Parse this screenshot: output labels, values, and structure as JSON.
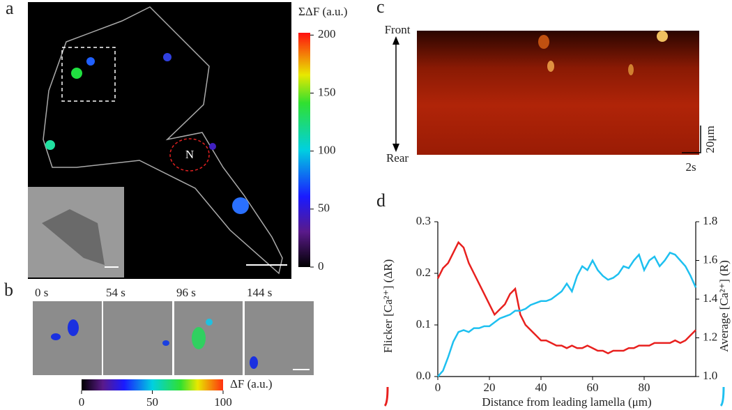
{
  "panel_labels": [
    "a",
    "b",
    "c",
    "d"
  ],
  "panel_a": {
    "colorbar_title": "ΣΔF (a.u.)",
    "colorbar_lim": [
      0,
      202
    ],
    "colorbar_ticks": [
      0,
      50,
      100,
      150,
      200
    ],
    "nucleus_label": "N"
  },
  "panel_b": {
    "times": [
      "0 s",
      "54 s",
      "96 s",
      "144 s"
    ],
    "colorbar_title": "ΔF (a.u.)",
    "colorbar_lim": [
      0,
      100
    ],
    "colorbar_ticks": [
      0,
      50,
      100
    ]
  },
  "panel_c": {
    "front": "Front",
    "rear": "Rear",
    "scale_y": "20μm",
    "scale_x": "2s"
  },
  "chart_data": {
    "type": "line",
    "xlabel": "Distance from leading lamella (μm)",
    "ylabel": "Flicker [Ca²⁺] (ΔR)",
    "y2label": "Average [Ca²⁺] (R)",
    "xlim": [
      0,
      100
    ],
    "xticks": [
      0,
      20,
      40,
      60,
      80
    ],
    "ylim": [
      0,
      0.3
    ],
    "yticks": [
      {
        "value": 0,
        "label": "0.0"
      },
      0.1,
      0.2,
      0.3
    ],
    "y2lim": [
      1,
      1.8
    ],
    "y2ticks": [
      {
        "value": 1,
        "label": "1.0"
      },
      1.2,
      1.4,
      1.6,
      1.8
    ],
    "x": [
      0,
      2,
      4,
      6,
      8,
      10,
      12,
      14,
      16,
      18,
      20,
      22,
      24,
      26,
      28,
      30,
      32,
      34,
      36,
      38,
      40,
      42,
      44,
      46,
      48,
      50,
      52,
      54,
      56,
      58,
      60,
      62,
      64,
      66,
      68,
      70,
      72,
      74,
      76,
      78,
      80,
      82,
      84,
      86,
      88,
      90,
      92,
      94,
      96,
      98,
      100
    ],
    "series": [
      {
        "color": "#e8201e",
        "values": [
          0.19,
          0.21,
          0.22,
          0.24,
          0.26,
          0.25,
          0.22,
          0.2,
          0.18,
          0.16,
          0.14,
          0.12,
          0.13,
          0.14,
          0.16,
          0.17,
          0.12,
          0.1,
          0.09,
          0.08,
          0.07,
          0.07,
          0.065,
          0.06,
          0.06,
          0.055,
          0.06,
          0.055,
          0.055,
          0.06,
          0.055,
          0.05,
          0.05,
          0.045,
          0.05,
          0.05,
          0.05,
          0.055,
          0.055,
          0.06,
          0.06,
          0.06,
          0.065,
          0.065,
          0.065,
          0.065,
          0.07,
          0.065,
          0.07,
          0.08,
          0.09
        ]
      },
      {
        "color": "#1ec0f0",
        "axis": "y2",
        "values": [
          1.0,
          1.03,
          1.1,
          1.18,
          1.23,
          1.24,
          1.23,
          1.25,
          1.25,
          1.26,
          1.26,
          1.28,
          1.3,
          1.31,
          1.32,
          1.34,
          1.34,
          1.35,
          1.37,
          1.38,
          1.39,
          1.39,
          1.4,
          1.42,
          1.44,
          1.48,
          1.44,
          1.52,
          1.57,
          1.55,
          1.6,
          1.55,
          1.52,
          1.5,
          1.51,
          1.53,
          1.57,
          1.56,
          1.6,
          1.63,
          1.55,
          1.6,
          1.62,
          1.57,
          1.6,
          1.64,
          1.63,
          1.6,
          1.57,
          1.52,
          1.46
        ]
      }
    ]
  }
}
